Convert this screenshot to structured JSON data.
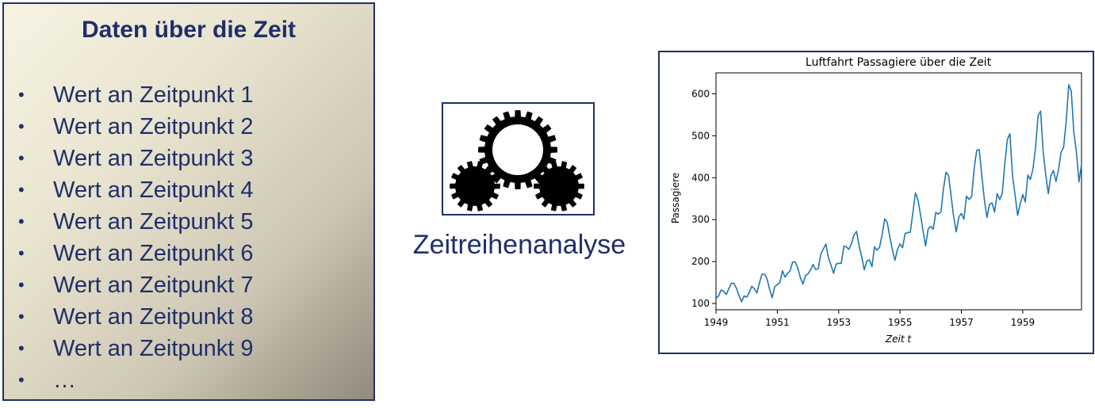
{
  "data_box": {
    "title": "Daten über die Zeit",
    "items": [
      "Wert an Zeitpunkt 1",
      "Wert an Zeitpunkt 2",
      "Wert an Zeitpunkt 3",
      "Wert an Zeitpunkt 4",
      "Wert an Zeitpunkt 5",
      "Wert an Zeitpunkt 6",
      "Wert an Zeitpunkt 7",
      "Wert an Zeitpunkt 8",
      "Wert an Zeitpunkt 9",
      "…"
    ],
    "bullet": "•"
  },
  "analysis": {
    "label": "Zeitreihenanalyse",
    "icon": "gears-icon"
  },
  "colors": {
    "text": "#1f2f6a",
    "line": "#1f77b4"
  },
  "chart_data": {
    "type": "line",
    "title": "Luftfahrt Passagiere über die Zeit",
    "xlabel": "Zeit t",
    "ylabel": "Passagiere",
    "x_ticks": [
      "1949",
      "1951",
      "1953",
      "1955",
      "1957",
      "1959"
    ],
    "y_ticks": [
      "100",
      "200",
      "300",
      "400",
      "500",
      "600"
    ],
    "xlim": [
      "1949-01",
      "1960-12"
    ],
    "ylim": [
      85,
      650
    ],
    "grid": false,
    "series": [
      {
        "x_start": "1949-01",
        "frequency": "monthly",
        "values": [
          112,
          118,
          132,
          129,
          121,
          135,
          148,
          148,
          136,
          119,
          104,
          118,
          115,
          126,
          141,
          135,
          125,
          149,
          170,
          170,
          158,
          133,
          114,
          140,
          145,
          150,
          178,
          163,
          172,
          178,
          199,
          199,
          184,
          162,
          146,
          166,
          171,
          180,
          193,
          181,
          183,
          218,
          230,
          242,
          209,
          191,
          172,
          194,
          196,
          196,
          236,
          235,
          229,
          243,
          264,
          272,
          237,
          211,
          180,
          201,
          204,
          188,
          235,
          227,
          234,
          264,
          302,
          293,
          259,
          229,
          203,
          229,
          242,
          233,
          267,
          269,
          270,
          315,
          364,
          347,
          312,
          274,
          237,
          278,
          284,
          277,
          317,
          313,
          318,
          374,
          413,
          405,
          355,
          306,
          271,
          306,
          315,
          301,
          356,
          348,
          355,
          422,
          465,
          467,
          404,
          347,
          305,
          336,
          340,
          318,
          362,
          348,
          363,
          435,
          491,
          505,
          404,
          359,
          310,
          337,
          360,
          342,
          406,
          396,
          420,
          472,
          548,
          559,
          463,
          407,
          362,
          405,
          417,
          391,
          419,
          461,
          472,
          535,
          622,
          606,
          508,
          461,
          390,
          432
        ]
      }
    ]
  }
}
